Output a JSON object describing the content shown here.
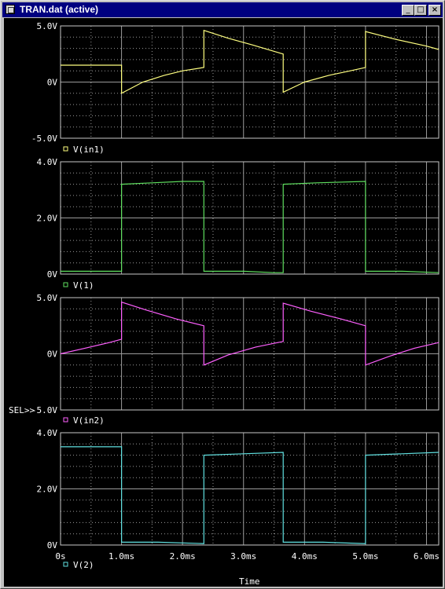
{
  "window": {
    "title": "TRAN.dat (active)",
    "minimize_icon": "minimize-icon",
    "maximize_icon": "maximize-icon",
    "close_icon": "close-icon"
  },
  "plot": {
    "background": "#000000",
    "grid_color": "#9a9a9a",
    "axis_color": "#c8c8c8",
    "text_color": "#ffffff",
    "x_title": "Time",
    "selector_label": "SEL>>"
  },
  "chart_data": [
    {
      "type": "line",
      "x_unit": "ms",
      "xlim": [
        0,
        6.2
      ],
      "x_tick_values": [
        0,
        1,
        2,
        3,
        4,
        5,
        6
      ],
      "x_tick_labels": [
        "0s",
        "1.0ms",
        "2.0ms",
        "3.0ms",
        "4.0ms",
        "5.0ms",
        "6.0ms"
      ],
      "ylim": [
        -5,
        5
      ],
      "y_tick_values": [
        5,
        0,
        -5
      ],
      "y_tick_labels": [
        "5.0V",
        "0V",
        "-5.0V"
      ],
      "grid": true,
      "series": [
        {
          "name": "V(in1)",
          "color": "#ffff80",
          "points": [
            [
              0,
              1.5
            ],
            [
              1,
              1.5
            ],
            [
              1,
              -1.0
            ],
            [
              1.35,
              0.0
            ],
            [
              1.7,
              0.6
            ],
            [
              2,
              1.0
            ],
            [
              2.35,
              1.3
            ],
            [
              2.35,
              4.6
            ],
            [
              2.75,
              3.9
            ],
            [
              3.15,
              3.3
            ],
            [
              3.65,
              2.5
            ],
            [
              3.65,
              -0.9
            ],
            [
              4.0,
              0.0
            ],
            [
              4.4,
              0.6
            ],
            [
              4.75,
              1.0
            ],
            [
              5,
              1.3
            ],
            [
              5,
              4.5
            ],
            [
              5.5,
              3.8
            ],
            [
              6.0,
              3.2
            ],
            [
              6.2,
              2.9
            ]
          ]
        }
      ]
    },
    {
      "type": "line",
      "x_unit": "ms",
      "xlim": [
        0,
        6.2
      ],
      "x_tick_values": [
        0,
        1,
        2,
        3,
        4,
        5,
        6
      ],
      "x_tick_labels": [
        "0s",
        "1.0ms",
        "2.0ms",
        "3.0ms",
        "4.0ms",
        "5.0ms",
        "6.0ms"
      ],
      "ylim": [
        0,
        4
      ],
      "y_tick_values": [
        4,
        2,
        0
      ],
      "y_tick_labels": [
        "4.0V",
        "2.0V",
        "0V"
      ],
      "grid": true,
      "series": [
        {
          "name": "V(1)",
          "color": "#5fdf5f",
          "points": [
            [
              0,
              0.1
            ],
            [
              1,
              0.1
            ],
            [
              1,
              3.2
            ],
            [
              1.5,
              3.25
            ],
            [
              2,
              3.3
            ],
            [
              2.35,
              3.3
            ],
            [
              2.35,
              0.1
            ],
            [
              3,
              0.1
            ],
            [
              3.5,
              0.05
            ],
            [
              3.65,
              0.05
            ],
            [
              3.65,
              3.2
            ],
            [
              4.2,
              3.25
            ],
            [
              5,
              3.3
            ],
            [
              5,
              0.1
            ],
            [
              5.6,
              0.1
            ],
            [
              6.2,
              0.05
            ]
          ]
        }
      ]
    },
    {
      "type": "line",
      "x_unit": "ms",
      "xlim": [
        0,
        6.2
      ],
      "x_tick_values": [
        0,
        1,
        2,
        3,
        4,
        5,
        6
      ],
      "x_tick_labels": [
        "0s",
        "1.0ms",
        "2.0ms",
        "3.0ms",
        "4.0ms",
        "5.0ms",
        "6.0ms"
      ],
      "ylim": [
        -5,
        5
      ],
      "y_tick_values": [
        5,
        0,
        -5
      ],
      "y_tick_labels": [
        "5.0V",
        "0V",
        "-5.0V"
      ],
      "grid": true,
      "series": [
        {
          "name": "V(in2)",
          "color": "#ff60ff",
          "points": [
            [
              0,
              0
            ],
            [
              0.4,
              0.5
            ],
            [
              0.8,
              1.0
            ],
            [
              1,
              1.3
            ],
            [
              1,
              4.6
            ],
            [
              1.4,
              3.9
            ],
            [
              1.9,
              3.1
            ],
            [
              2.35,
              2.5
            ],
            [
              2.35,
              -1.0
            ],
            [
              2.75,
              -0.1
            ],
            [
              3.2,
              0.6
            ],
            [
              3.65,
              1.1
            ],
            [
              3.65,
              4.5
            ],
            [
              4.1,
              3.8
            ],
            [
              4.6,
              3.1
            ],
            [
              5,
              2.5
            ],
            [
              5,
              -1.0
            ],
            [
              5.4,
              -0.2
            ],
            [
              5.8,
              0.5
            ],
            [
              6.2,
              1.0
            ]
          ]
        }
      ]
    },
    {
      "type": "line",
      "x_unit": "ms",
      "xlim": [
        0,
        6.2
      ],
      "x_tick_values": [
        0,
        1,
        2,
        3,
        4,
        5,
        6
      ],
      "x_tick_labels": [
        "0s",
        "1.0ms",
        "2.0ms",
        "3.0ms",
        "4.0ms",
        "5.0ms",
        "6.0ms"
      ],
      "ylim": [
        0,
        4
      ],
      "y_tick_values": [
        4,
        2,
        0
      ],
      "y_tick_labels": [
        "4.0V",
        "2.0V",
        "0V"
      ],
      "grid": true,
      "series": [
        {
          "name": "V(2)",
          "color": "#60e0e0",
          "points": [
            [
              0,
              3.5
            ],
            [
              1,
              3.5
            ],
            [
              1,
              0.1
            ],
            [
              1.6,
              0.1
            ],
            [
              2.35,
              0.05
            ],
            [
              2.35,
              3.2
            ],
            [
              3,
              3.25
            ],
            [
              3.65,
              3.3
            ],
            [
              3.65,
              0.1
            ],
            [
              4.3,
              0.1
            ],
            [
              5,
              0.05
            ],
            [
              5,
              3.2
            ],
            [
              5.6,
              3.25
            ],
            [
              6.2,
              3.3
            ]
          ]
        }
      ]
    }
  ]
}
